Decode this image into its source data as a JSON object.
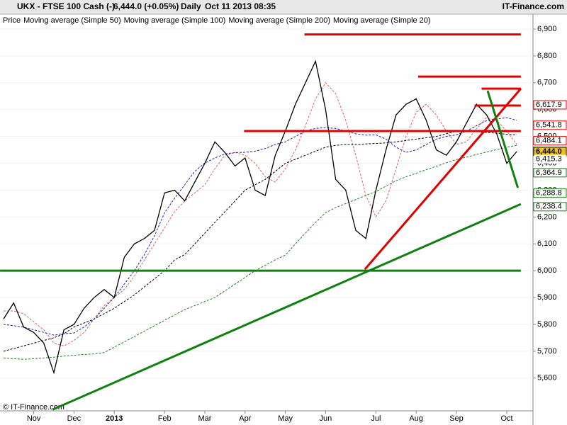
{
  "chart_data": {
    "type": "line",
    "title": "UKX - FTSE 100 Cash (-)",
    "last": "6,444.0 (+0.05%)",
    "period": "Daily",
    "timestamp": "Oct 11 2013 08:35",
    "source": "IT-Finance.com",
    "footer": "© IT-Finance.com",
    "categories": [
      null,
      null,
      null,
      "Nov",
      null,
      null,
      null,
      "Dec",
      null,
      null,
      null,
      "2013",
      null,
      null,
      null,
      null,
      "Feb",
      null,
      null,
      null,
      "Mar",
      null,
      null,
      null,
      "Apr",
      null,
      null,
      null,
      "May",
      null,
      null,
      null,
      "Jun",
      null,
      null,
      null,
      null,
      "Jul",
      null,
      null,
      null,
      "Aug",
      null,
      null,
      null,
      "Sep",
      null,
      null,
      null,
      null,
      "Oct",
      null
    ],
    "series": [
      {
        "name": "Price",
        "color": "#000000",
        "dashed": false,
        "values": [
          5820,
          5880,
          5790,
          5770,
          5730,
          5620,
          5780,
          5800,
          5860,
          5900,
          5930,
          5900,
          6050,
          6100,
          6120,
          6150,
          6290,
          6300,
          6260,
          6330,
          6400,
          6480,
          6440,
          6390,
          6420,
          6300,
          6280,
          6430,
          6520,
          6620,
          6700,
          6780,
          6600,
          6340,
          6300,
          6150,
          6120,
          6300,
          6450,
          6580,
          6620,
          6640,
          6560,
          6450,
          6430,
          6480,
          6550,
          6620,
          6580,
          6510,
          6400,
          6444
        ]
      },
      {
        "name": "Moving average (Simple 50)",
        "color": "#2020c8",
        "dashed": true,
        "values": [
          5800,
          5795,
          5790,
          5780,
          5770,
          5760,
          5765,
          5768,
          5790,
          5820,
          5860,
          5900,
          5950,
          6000,
          6060,
          6130,
          6216,
          6270,
          6320,
          6370,
          6401,
          6420,
          6435,
          6440,
          6441,
          6445,
          6455,
          6470,
          6480,
          6500,
          6520,
          6530,
          6533,
          6530,
          6520,
          6510,
          6505,
          6506,
          6490,
          6460,
          6441,
          6450,
          6470,
          6490,
          6500,
          6506,
          6520,
          6540,
          6559,
          6565,
          6570,
          6560
        ]
      },
      {
        "name": "Moving average (Simple 100)",
        "color": "#000000",
        "dashed": true,
        "values": [
          5700,
          5710,
          5720,
          5730,
          5740,
          5750,
          5765,
          5790,
          5805,
          5820,
          5840,
          5860,
          5885,
          5910,
          5940,
          5970,
          6000,
          6040,
          6060,
          6100,
          6140,
          6180,
          6220,
          6260,
          6300,
          6320,
          6340,
          6370,
          6400,
          6415,
          6430,
          6445,
          6460,
          6467,
          6470,
          6470,
          6472,
          6474,
          6476,
          6480,
          6485,
          6490,
          6495,
          6500,
          6510,
          6520,
          6520,
          6518,
          6515,
          6512,
          6508,
          6506
        ]
      },
      {
        "name": "Moving average (Simple 200)",
        "color": "#208020",
        "dashed": true,
        "values": [
          5675,
          5672,
          5670,
          5672,
          5675,
          5678,
          5682,
          5685,
          5688,
          5690,
          5695,
          5715,
          5735,
          5755,
          5775,
          5795,
          5815,
          5835,
          5855,
          5870,
          5885,
          5900,
          5925,
          5950,
          5975,
          6000,
          6020,
          6040,
          6058,
          6100,
          6140,
          6180,
          6216,
          6235,
          6250,
          6265,
          6280,
          6295,
          6315,
          6335,
          6350,
          6363,
          6376,
          6389,
          6402,
          6414,
          6423,
          6433,
          6442,
          6451,
          6460,
          6467
        ]
      },
      {
        "name": "Moving average (Simple 20)",
        "color": "#e06060",
        "dashed": true,
        "values": [
          5850,
          5850,
          5840,
          5810,
          5780,
          5730,
          5720,
          5740,
          5770,
          5820,
          5870,
          5900,
          5930,
          5980,
          6040,
          6100,
          6160,
          6220,
          6260,
          6290,
          6320,
          6380,
          6430,
          6440,
          6430,
          6400,
          6350,
          6330,
          6380,
          6450,
          6540,
          6640,
          6700,
          6660,
          6560,
          6430,
          6280,
          6200,
          6260,
          6380,
          6500,
          6590,
          6620,
          6580,
          6520,
          6470,
          6480,
          6530,
          6570,
          6560,
          6520,
          6470
        ]
      }
    ],
    "ylim": [
      5478,
      6908
    ],
    "yticks": [
      {
        "value": 5600,
        "label": "5,600"
      },
      {
        "value": 5700,
        "label": "5,700"
      },
      {
        "value": 5800,
        "label": "5,800"
      },
      {
        "value": 5900,
        "label": "5,900"
      },
      {
        "value": 6000,
        "label": "6,000"
      },
      {
        "value": 6100,
        "label": "6,100"
      },
      {
        "value": 6200,
        "label": "6,200"
      },
      {
        "value": 6300,
        "label": "6,300"
      },
      {
        "value": 6400,
        "label": "6,400"
      },
      {
        "value": 6500,
        "label": "6,500"
      },
      {
        "value": 6600,
        "label": "6,600"
      },
      {
        "value": 6700,
        "label": "6,700"
      },
      {
        "value": 6800,
        "label": "6,800"
      },
      {
        "value": 6900,
        "label": "6,900"
      }
    ],
    "trend_lines": [
      {
        "color": "#e00000",
        "x": [
          29.9,
          51.4
        ],
        "y": [
          6880,
          6880
        ]
      },
      {
        "color": "#e00000",
        "x": [
          41.2,
          51.4
        ],
        "y": [
          6723,
          6723
        ]
      },
      {
        "color": "#e00000",
        "x": [
          47.5,
          51.4
        ],
        "y": [
          6678,
          6678
        ]
      },
      {
        "color": "#e00000",
        "x": [
          46.8,
          51.4
        ],
        "y": [
          6615,
          6615
        ]
      },
      {
        "color": "#e00000",
        "x": [
          23.9,
          51.4
        ],
        "y": [
          6520,
          6520
        ]
      },
      {
        "color": "#e00000",
        "x": [
          35.9,
          51.4
        ],
        "y": [
          6005,
          6678
        ]
      },
      {
        "color": "#108010",
        "x": [
          -0.35,
          51.4
        ],
        "y": [
          6000,
          6000
        ]
      },
      {
        "color": "#108010",
        "x": [
          4.9,
          51.4
        ],
        "y": [
          5483,
          6248
        ]
      },
      {
        "color": "#108010",
        "x": [
          48.1,
          51.1
        ],
        "y": [
          6670,
          6309
        ]
      }
    ],
    "price_labels": [
      {
        "value": 6617.9,
        "label": "6,617.9",
        "color": "#e00000",
        "highlight": false
      },
      {
        "value": 6541.8,
        "label": "6,541.8",
        "color": "#e00000",
        "highlight": false
      },
      {
        "value": 6484.1,
        "label": "6,484.1",
        "color": "#e00000",
        "highlight": false
      },
      {
        "value": 6444.0,
        "label": "6,444.0",
        "color": "#000000",
        "highlight": true
      },
      {
        "value": 6415.3,
        "label": "6,415.3",
        "color": "#444444",
        "highlight": false
      },
      {
        "value": 6364.9,
        "label": "6,364.9",
        "color": "#108010",
        "highlight": false
      },
      {
        "value": 6288.8,
        "label": "6,288.8",
        "color": "#108010",
        "highlight": false
      },
      {
        "value": 6238.4,
        "label": "6,238.4",
        "color": "#108010",
        "highlight": false
      }
    ]
  }
}
